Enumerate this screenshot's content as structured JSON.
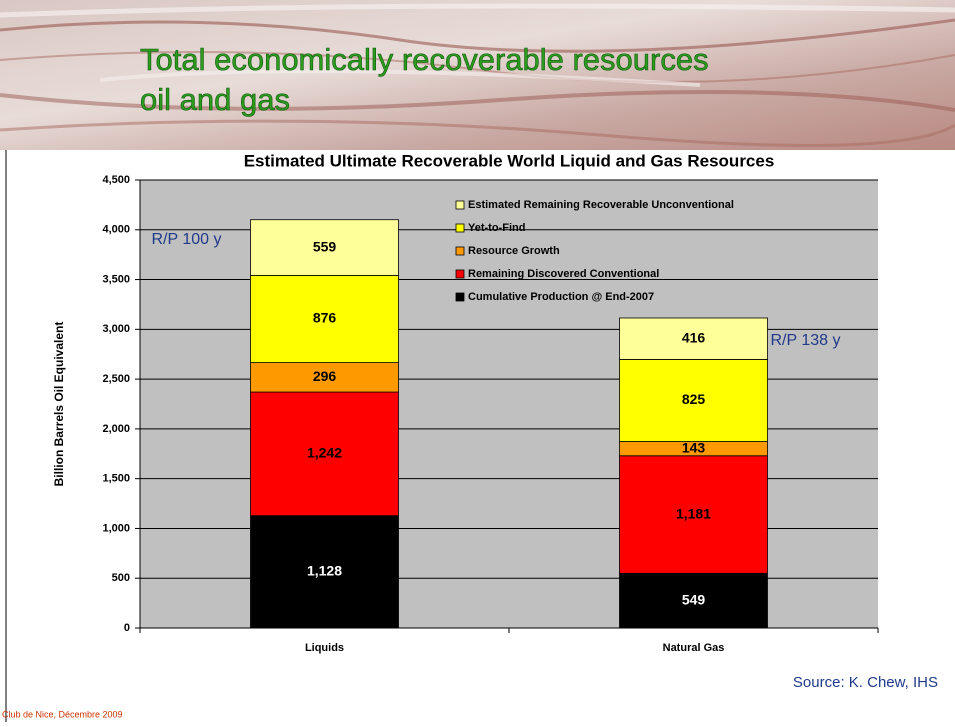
{
  "slide": {
    "title_lines": [
      "Total economically recoverable resources",
      "oil and gas"
    ],
    "source": "Source: K. Chew, IHS",
    "footer": "Club de Nice, Décembre 2009"
  },
  "chart_data": {
    "type": "stacked_bar",
    "title": "Estimated Ultimate Recoverable World Liquid and Gas Resources",
    "y_label": "Billion Barrels Oil Equivalent",
    "categories": [
      "Liquids",
      "Natural Gas"
    ],
    "series": [
      {
        "name": "Cumulative Production @ End-2007",
        "color": "#000000",
        "values": [
          1128,
          549
        ],
        "value_labels": [
          "1,128",
          "549"
        ]
      },
      {
        "name": "Remaining Discovered Conventional",
        "color": "#ff0000",
        "values": [
          1242,
          1181
        ],
        "value_labels": [
          "1,242",
          "1,181"
        ]
      },
      {
        "name": "Resource Growth",
        "color": "#ff9900",
        "values": [
          296,
          143
        ]
      },
      {
        "name": "Yet-to-Find",
        "color": "#ffff00",
        "values": [
          876,
          825
        ]
      },
      {
        "name": "Estimated Remaining Recoverable Unconventional",
        "color": "#ffff99",
        "values": [
          559,
          416
        ]
      }
    ],
    "annotations": [
      "R/P 100 y",
      "R/P 138 y"
    ],
    "ylim": [
      0,
      4500
    ],
    "yticks": [
      0,
      500,
      {
        "value": 1000,
        "label": "1,000"
      },
      {
        "value": 1500,
        "label": "1,500"
      },
      {
        "value": 2000,
        "label": "2,000"
      },
      {
        "value": 2500,
        "label": "2,500"
      },
      {
        "value": 3000,
        "label": "3,000"
      },
      {
        "value": 3500,
        "label": "3,500"
      },
      {
        "value": 4000,
        "label": "4,000"
      },
      {
        "value": 4500,
        "label": "4,500"
      }
    ],
    "grid": true,
    "plot_background": "#c0c0c0"
  }
}
